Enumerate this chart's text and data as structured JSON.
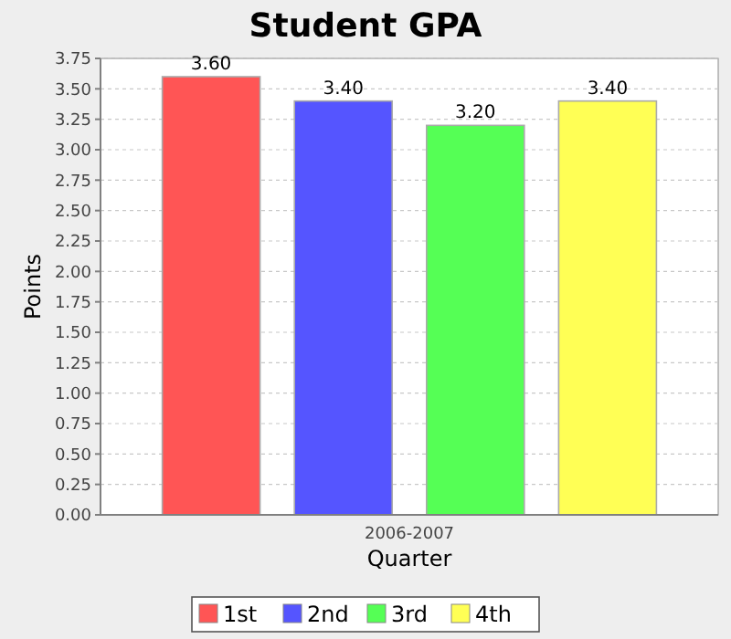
{
  "chart_data": {
    "type": "bar",
    "title": "Student GPA",
    "xlabel": "Quarter",
    "ylabel": "Points",
    "categories": [
      "2006-2007"
    ],
    "series": [
      {
        "name": "1st",
        "color": "#ff5555",
        "values": [
          3.6
        ],
        "value_labels": [
          "3.60"
        ]
      },
      {
        "name": "2nd",
        "color": "#5555ff",
        "values": [
          3.4
        ],
        "value_labels": [
          "3.40"
        ]
      },
      {
        "name": "3rd",
        "color": "#55ff55",
        "values": [
          3.2
        ],
        "value_labels": [
          "3.20"
        ]
      },
      {
        "name": "4th",
        "color": "#ffff55",
        "values": [
          3.4
        ],
        "value_labels": [
          "3.40"
        ]
      }
    ],
    "ylim": [
      0,
      3.75
    ],
    "yticks": [
      {
        "value": 0,
        "label": "0.00"
      },
      {
        "value": 0.25,
        "label": "0.25"
      },
      {
        "value": 0.5,
        "label": "0.50"
      },
      {
        "value": 0.75,
        "label": "0.75"
      },
      {
        "value": 1,
        "label": "1.00"
      },
      {
        "value": 1.25,
        "label": "1.25"
      },
      {
        "value": 1.5,
        "label": "1.50"
      },
      {
        "value": 1.75,
        "label": "1.75"
      },
      {
        "value": 2,
        "label": "2.00"
      },
      {
        "value": 2.25,
        "label": "2.25"
      },
      {
        "value": 2.5,
        "label": "2.50"
      },
      {
        "value": 2.75,
        "label": "2.75"
      },
      {
        "value": 3,
        "label": "3.00"
      },
      {
        "value": 3.25,
        "label": "3.25"
      },
      {
        "value": 3.5,
        "label": "3.50"
      },
      {
        "value": 3.75,
        "label": "3.75"
      }
    ],
    "grid": "y",
    "legend": "bottom"
  }
}
